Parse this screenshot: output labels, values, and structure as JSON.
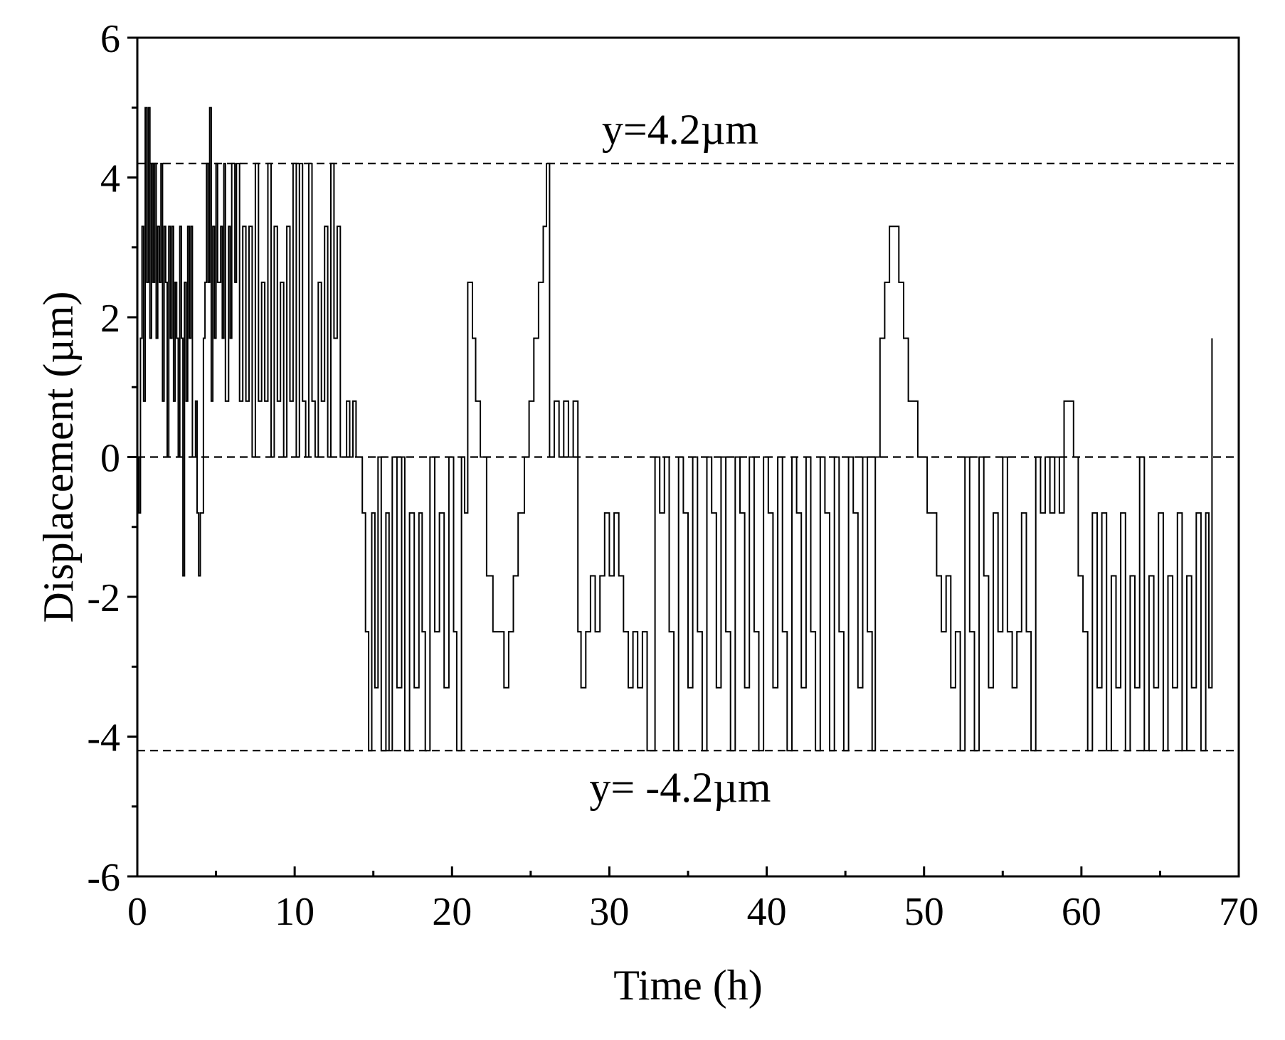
{
  "chart_data": {
    "type": "line",
    "title": "",
    "xlabel": "Time (h)",
    "ylabel": "Displacement (µm)",
    "xlim": [
      0,
      70
    ],
    "ylim": [
      -6,
      6
    ],
    "x_ticks": [
      0,
      10,
      20,
      30,
      40,
      50,
      60,
      70
    ],
    "y_ticks": [
      -6,
      -4,
      -2,
      0,
      2,
      4,
      6
    ],
    "x_minor_step": 5,
    "y_minor_step": 1,
    "grid": false,
    "legend": "none",
    "reference_lines": [
      {
        "y": 4.2,
        "label": "y=4.2µm",
        "style": "dashed"
      },
      {
        "y": 0,
        "label": "",
        "style": "dashed"
      },
      {
        "y": -4.2,
        "label": "y= -4.2µm",
        "style": "dashed"
      }
    ],
    "series": [
      {
        "color": "#000000",
        "points": [
          [
            0.0,
            0.0
          ],
          [
            0.1,
            -0.8
          ],
          [
            0.2,
            1.7
          ],
          [
            0.3,
            3.3
          ],
          [
            0.4,
            0.8
          ],
          [
            0.5,
            5.0
          ],
          [
            0.6,
            2.5
          ],
          [
            0.7,
            5.0
          ],
          [
            0.8,
            1.7
          ],
          [
            0.9,
            4.2
          ],
          [
            1.0,
            2.5
          ],
          [
            1.1,
            4.2
          ],
          [
            1.2,
            1.7
          ],
          [
            1.3,
            3.3
          ],
          [
            1.4,
            2.5
          ],
          [
            1.5,
            4.2
          ],
          [
            1.6,
            0.8
          ],
          [
            1.7,
            3.3
          ],
          [
            1.8,
            2.5
          ],
          [
            1.9,
            0.0
          ],
          [
            2.0,
            3.3
          ],
          [
            2.1,
            1.7
          ],
          [
            2.2,
            3.3
          ],
          [
            2.3,
            0.8
          ],
          [
            2.4,
            2.5
          ],
          [
            2.5,
            1.7
          ],
          [
            2.6,
            0.0
          ],
          [
            2.7,
            3.3
          ],
          [
            2.8,
            1.7
          ],
          [
            2.9,
            -1.7
          ],
          [
            3.0,
            2.5
          ],
          [
            3.1,
            0.8
          ],
          [
            3.2,
            3.3
          ],
          [
            3.3,
            1.7
          ],
          [
            3.4,
            3.3
          ],
          [
            3.5,
            0.0
          ],
          [
            3.7,
            0.8
          ],
          [
            3.8,
            -0.8
          ],
          [
            3.9,
            -1.7
          ],
          [
            4.0,
            -0.8
          ],
          [
            4.2,
            1.7
          ],
          [
            4.3,
            2.5
          ],
          [
            4.4,
            4.2
          ],
          [
            4.5,
            2.5
          ],
          [
            4.6,
            5.0
          ],
          [
            4.7,
            0.8
          ],
          [
            4.8,
            3.3
          ],
          [
            4.9,
            1.7
          ],
          [
            5.0,
            4.2
          ],
          [
            5.1,
            2.5
          ],
          [
            5.3,
            3.3
          ],
          [
            5.4,
            1.7
          ],
          [
            5.5,
            4.2
          ],
          [
            5.6,
            0.8
          ],
          [
            5.8,
            3.3
          ],
          [
            5.9,
            1.7
          ],
          [
            6.0,
            4.2
          ],
          [
            6.2,
            2.5
          ],
          [
            6.3,
            4.2
          ],
          [
            6.5,
            0.8
          ],
          [
            6.7,
            3.3
          ],
          [
            6.9,
            0.8
          ],
          [
            7.1,
            3.3
          ],
          [
            7.3,
            0.0
          ],
          [
            7.5,
            4.2
          ],
          [
            7.7,
            0.8
          ],
          [
            7.9,
            2.5
          ],
          [
            8.1,
            0.8
          ],
          [
            8.3,
            4.2
          ],
          [
            8.5,
            0.0
          ],
          [
            8.7,
            3.3
          ],
          [
            8.9,
            0.8
          ],
          [
            9.1,
            2.5
          ],
          [
            9.3,
            0.0
          ],
          [
            9.5,
            3.3
          ],
          [
            9.7,
            0.8
          ],
          [
            9.9,
            4.2
          ],
          [
            10.1,
            0.0
          ],
          [
            10.3,
            4.2
          ],
          [
            10.5,
            0.8
          ],
          [
            10.7,
            0.0
          ],
          [
            10.9,
            4.2
          ],
          [
            11.1,
            0.8
          ],
          [
            11.3,
            0.0
          ],
          [
            11.5,
            2.5
          ],
          [
            11.7,
            0.8
          ],
          [
            11.9,
            3.3
          ],
          [
            12.1,
            0.0
          ],
          [
            12.3,
            4.2
          ],
          [
            12.5,
            1.7
          ],
          [
            12.7,
            3.3
          ],
          [
            12.9,
            0.0
          ],
          [
            13.3,
            0.8
          ],
          [
            13.5,
            0.0
          ],
          [
            13.7,
            0.8
          ],
          [
            13.9,
            0.0
          ],
          [
            14.1,
            0.0
          ],
          [
            14.3,
            -0.8
          ],
          [
            14.5,
            -2.5
          ],
          [
            14.7,
            -4.2
          ],
          [
            14.9,
            -0.8
          ],
          [
            15.1,
            -3.3
          ],
          [
            15.3,
            0.0
          ],
          [
            15.5,
            -4.2
          ],
          [
            15.8,
            -0.8
          ],
          [
            16.0,
            -4.2
          ],
          [
            16.2,
            0.0
          ],
          [
            16.5,
            -3.3
          ],
          [
            16.8,
            0.0
          ],
          [
            17.0,
            -4.2
          ],
          [
            17.3,
            -0.8
          ],
          [
            17.6,
            -3.3
          ],
          [
            17.9,
            -0.8
          ],
          [
            18.1,
            -2.5
          ],
          [
            18.3,
            -4.2
          ],
          [
            18.6,
            0.0
          ],
          [
            18.9,
            -2.5
          ],
          [
            19.2,
            -0.8
          ],
          [
            19.5,
            -3.3
          ],
          [
            19.8,
            0.0
          ],
          [
            20.1,
            -2.5
          ],
          [
            20.3,
            -4.2
          ],
          [
            20.6,
            0.0
          ],
          [
            20.8,
            -0.8
          ],
          [
            21.0,
            2.5
          ],
          [
            21.3,
            1.7
          ],
          [
            21.5,
            0.8
          ],
          [
            21.8,
            0.0
          ],
          [
            22.2,
            -1.7
          ],
          [
            22.6,
            -2.5
          ],
          [
            23.0,
            -2.5
          ],
          [
            23.3,
            -3.3
          ],
          [
            23.6,
            -2.5
          ],
          [
            23.9,
            -1.7
          ],
          [
            24.2,
            -0.8
          ],
          [
            24.6,
            0.0
          ],
          [
            24.9,
            0.8
          ],
          [
            25.2,
            1.7
          ],
          [
            25.5,
            2.5
          ],
          [
            25.8,
            3.3
          ],
          [
            26.0,
            4.2
          ],
          [
            26.2,
            0.0
          ],
          [
            26.5,
            0.8
          ],
          [
            26.8,
            0.0
          ],
          [
            27.1,
            0.8
          ],
          [
            27.4,
            0.0
          ],
          [
            27.7,
            0.8
          ],
          [
            28.0,
            -2.5
          ],
          [
            28.2,
            -3.3
          ],
          [
            28.5,
            -2.5
          ],
          [
            28.8,
            -1.7
          ],
          [
            29.1,
            -2.5
          ],
          [
            29.4,
            -1.7
          ],
          [
            29.7,
            -0.8
          ],
          [
            30.0,
            -1.7
          ],
          [
            30.3,
            -0.8
          ],
          [
            30.6,
            -1.7
          ],
          [
            30.9,
            -2.5
          ],
          [
            31.2,
            -3.3
          ],
          [
            31.5,
            -2.5
          ],
          [
            31.8,
            -3.3
          ],
          [
            32.1,
            -2.5
          ],
          [
            32.4,
            -4.2
          ],
          [
            32.7,
            -4.2
          ],
          [
            32.9,
            0.0
          ],
          [
            33.2,
            -0.8
          ],
          [
            33.5,
            0.0
          ],
          [
            33.8,
            -2.5
          ],
          [
            34.1,
            -4.2
          ],
          [
            34.4,
            0.0
          ],
          [
            34.7,
            -0.8
          ],
          [
            35.0,
            -3.3
          ],
          [
            35.3,
            0.0
          ],
          [
            35.6,
            -2.5
          ],
          [
            35.9,
            -4.2
          ],
          [
            36.2,
            0.0
          ],
          [
            36.5,
            -0.8
          ],
          [
            36.8,
            -3.3
          ],
          [
            37.1,
            0.0
          ],
          [
            37.4,
            -2.5
          ],
          [
            37.7,
            -4.2
          ],
          [
            38.0,
            0.0
          ],
          [
            38.3,
            -0.8
          ],
          [
            38.6,
            -3.3
          ],
          [
            38.9,
            0.0
          ],
          [
            39.2,
            -2.5
          ],
          [
            39.5,
            -4.2
          ],
          [
            39.8,
            0.0
          ],
          [
            40.1,
            -0.8
          ],
          [
            40.4,
            -3.3
          ],
          [
            40.7,
            0.0
          ],
          [
            41.0,
            -2.5
          ],
          [
            41.3,
            -4.2
          ],
          [
            41.6,
            0.0
          ],
          [
            41.9,
            -0.8
          ],
          [
            42.2,
            -3.3
          ],
          [
            42.5,
            0.0
          ],
          [
            42.8,
            -2.5
          ],
          [
            43.1,
            -4.2
          ],
          [
            43.4,
            0.0
          ],
          [
            43.7,
            -0.8
          ],
          [
            44.0,
            -4.2
          ],
          [
            44.3,
            0.0
          ],
          [
            44.6,
            -2.5
          ],
          [
            44.9,
            -4.2
          ],
          [
            45.2,
            0.0
          ],
          [
            45.5,
            -0.8
          ],
          [
            45.8,
            -3.3
          ],
          [
            46.1,
            0.0
          ],
          [
            46.4,
            -2.5
          ],
          [
            46.7,
            -4.2
          ],
          [
            46.9,
            0.0
          ],
          [
            47.2,
            1.7
          ],
          [
            47.5,
            2.5
          ],
          [
            47.8,
            3.3
          ],
          [
            48.1,
            3.3
          ],
          [
            48.4,
            2.5
          ],
          [
            48.7,
            1.7
          ],
          [
            49.0,
            0.8
          ],
          [
            49.3,
            0.8
          ],
          [
            49.6,
            0.0
          ],
          [
            49.9,
            0.0
          ],
          [
            50.2,
            -0.8
          ],
          [
            50.5,
            -0.8
          ],
          [
            50.8,
            -1.7
          ],
          [
            51.1,
            -2.5
          ],
          [
            51.4,
            -1.7
          ],
          [
            51.7,
            -3.3
          ],
          [
            52.0,
            -2.5
          ],
          [
            52.3,
            -4.2
          ],
          [
            52.6,
            0.0
          ],
          [
            52.9,
            -2.5
          ],
          [
            53.2,
            -4.2
          ],
          [
            53.5,
            0.0
          ],
          [
            53.8,
            -1.7
          ],
          [
            54.1,
            -3.3
          ],
          [
            54.4,
            -0.8
          ],
          [
            54.7,
            -2.5
          ],
          [
            55.0,
            0.0
          ],
          [
            55.3,
            -2.5
          ],
          [
            55.6,
            -3.3
          ],
          [
            55.9,
            -2.5
          ],
          [
            56.2,
            -0.8
          ],
          [
            56.5,
            -2.5
          ],
          [
            56.8,
            -4.2
          ],
          [
            57.1,
            0.0
          ],
          [
            57.4,
            -0.8
          ],
          [
            57.7,
            0.0
          ],
          [
            58.0,
            -0.8
          ],
          [
            58.3,
            0.0
          ],
          [
            58.6,
            -0.8
          ],
          [
            58.9,
            0.8
          ],
          [
            59.2,
            0.8
          ],
          [
            59.5,
            0.0
          ],
          [
            59.8,
            -1.7
          ],
          [
            60.1,
            -2.5
          ],
          [
            60.4,
            -4.2
          ],
          [
            60.7,
            -0.8
          ],
          [
            61.0,
            -3.3
          ],
          [
            61.3,
            -0.8
          ],
          [
            61.6,
            -4.2
          ],
          [
            61.9,
            -1.7
          ],
          [
            62.2,
            -3.3
          ],
          [
            62.5,
            -0.8
          ],
          [
            62.8,
            -4.2
          ],
          [
            63.1,
            -1.7
          ],
          [
            63.4,
            -3.3
          ],
          [
            63.7,
            0.0
          ],
          [
            64.0,
            -4.2
          ],
          [
            64.3,
            -1.7
          ],
          [
            64.6,
            -3.3
          ],
          [
            64.9,
            -0.8
          ],
          [
            65.2,
            -4.2
          ],
          [
            65.5,
            -1.7
          ],
          [
            65.8,
            -3.3
          ],
          [
            66.1,
            -0.8
          ],
          [
            66.4,
            -4.2
          ],
          [
            66.7,
            -1.7
          ],
          [
            67.0,
            -3.3
          ],
          [
            67.3,
            -0.8
          ],
          [
            67.6,
            -4.2
          ],
          [
            67.9,
            -0.8
          ],
          [
            68.1,
            -3.3
          ],
          [
            68.3,
            1.7
          ]
        ]
      }
    ]
  }
}
